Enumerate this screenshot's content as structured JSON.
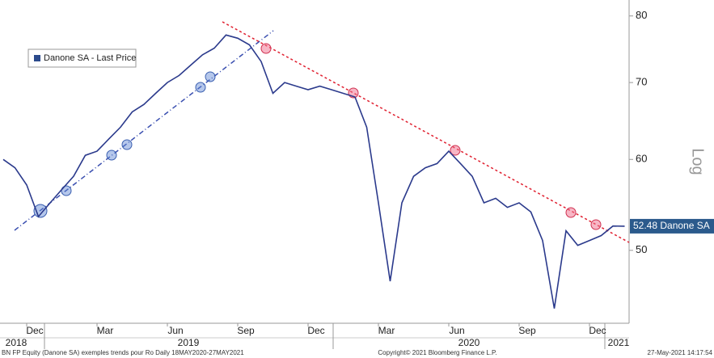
{
  "chart_data": {
    "type": "line",
    "legend": "Danone SA - Last Price",
    "axis_label": "Log",
    "log_scale": true,
    "series": [
      {
        "name": "Danone SA - Last Price",
        "color": "#2b3a8c",
        "values": [
          60,
          59,
          57,
          53.5,
          55,
          56.5,
          58,
          60.5,
          61,
          62.5,
          64,
          66,
          67,
          68.5,
          70,
          71,
          72.5,
          74,
          75,
          77,
          76.5,
          75.5,
          73,
          68.5,
          70,
          69.5,
          69,
          69.5,
          69,
          68.5,
          68,
          64,
          55,
          47,
          55,
          58,
          59,
          59.5,
          61,
          59.5,
          58,
          55,
          55.5,
          54.5,
          55,
          54,
          51,
          44.5,
          52,
          50.5,
          51,
          51.5,
          52.5,
          52.48
        ]
      }
    ],
    "categories": [
      null,
      null,
      "Dec",
      null,
      null,
      null,
      null,
      null,
      "Mar",
      null,
      null,
      null,
      null,
      null,
      "Jun",
      null,
      null,
      null,
      null,
      null,
      "Sep",
      null,
      null,
      null,
      null,
      null,
      "Dec",
      null,
      null,
      null,
      null,
      null,
      "Mar",
      null,
      null,
      null,
      null,
      null,
      "Jun",
      null,
      null,
      null,
      null,
      null,
      "Sep",
      null,
      null,
      null,
      null,
      null,
      "Dec",
      null,
      null,
      null
    ],
    "years": [
      "2018",
      "2019",
      "2020",
      "2021"
    ],
    "last_price_label": "52.48 Danone SA",
    "ylim": [
      43.2,
      82.6
    ],
    "yticks": [
      50,
      60,
      70,
      80
    ],
    "footer_left": "BN FP Equity (Danone SA) exemples trends pour Ro  Daily 18MAY2020-27MAY2021",
    "footer_center": "Copyright© 2021 Bloomberg Finance L.P.",
    "footer_right": "27-May-2021 14:17:54"
  }
}
